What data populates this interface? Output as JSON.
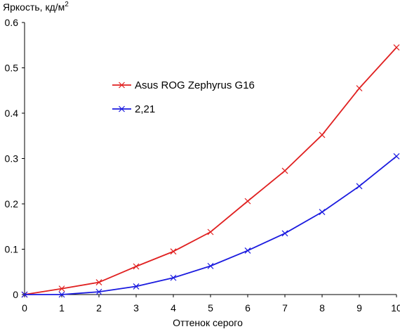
{
  "chart_data": {
    "type": "line",
    "ylabel": "Яркость, кд/м",
    "ylabel_superscript": "2",
    "xlabel": "Оттенок серого",
    "xlim": [
      0,
      10
    ],
    "ylim": [
      0,
      0.6
    ],
    "x_ticks": [
      "0",
      "1",
      "2",
      "3",
      "4",
      "5",
      "6",
      "7",
      "8",
      "9",
      "10"
    ],
    "y_ticks": [
      "0",
      "0.1",
      "0.2",
      "0.3",
      "0.4",
      "0.5",
      "0.6"
    ],
    "grid": false,
    "legend_placement": "upper-left-inside",
    "x": [
      0,
      1,
      2,
      3,
      4,
      5,
      6,
      7,
      8,
      9,
      10
    ],
    "series": [
      {
        "name": "Asus ROG Zephyrus G16",
        "color": "#e02020",
        "marker": "x",
        "values": [
          0.0,
          0.013,
          0.027,
          0.062,
          0.095,
          0.138,
          0.206,
          0.273,
          0.352,
          0.455,
          0.545
        ]
      },
      {
        "name": "2,21",
        "color": "#1a1adf",
        "marker": "x",
        "values": [
          0.0,
          0.0,
          0.006,
          0.018,
          0.037,
          0.063,
          0.097,
          0.135,
          0.182,
          0.239,
          0.305
        ]
      }
    ]
  }
}
